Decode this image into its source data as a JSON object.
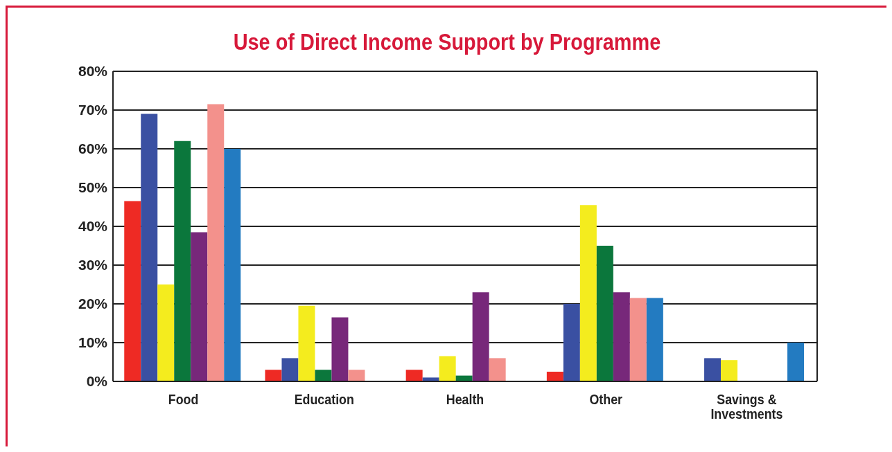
{
  "chart_data": {
    "type": "bar",
    "title": "Use of Direct Income Support by Programme",
    "categories": [
      "Food",
      "Education",
      "Health",
      "Other",
      "Savings & Investments"
    ],
    "series": [
      {
        "color": "#ee2a24",
        "values": [
          46.5,
          3,
          3,
          2.5,
          null
        ]
      },
      {
        "color": "#3a50a2",
        "values": [
          69,
          6,
          1,
          20,
          6
        ]
      },
      {
        "color": "#f4ec1e",
        "values": [
          25,
          19.5,
          6.5,
          45.5,
          5.5
        ]
      },
      {
        "color": "#0b773c",
        "values": [
          62,
          3,
          1.5,
          35,
          null
        ]
      },
      {
        "color": "#77287a",
        "values": [
          38.5,
          16.5,
          23,
          23,
          null
        ]
      },
      {
        "color": "#f3918c",
        "values": [
          71.5,
          3,
          6,
          21.5,
          null
        ]
      },
      {
        "color": "#237bc1",
        "values": [
          60,
          null,
          null,
          21.5,
          10
        ]
      }
    ],
    "ylim": [
      0,
      80
    ],
    "yticks": [
      {
        "value": 0,
        "label": "0%"
      },
      {
        "value": 10,
        "label": "10%"
      },
      {
        "value": 20,
        "label": "20%"
      },
      {
        "value": 30,
        "label": "30%"
      },
      {
        "value": 40,
        "label": "40%"
      },
      {
        "value": 50,
        "label": "50%"
      },
      {
        "value": 60,
        "label": "60%"
      },
      {
        "value": 70,
        "label": "70%"
      },
      {
        "value": 80,
        "label": "80%"
      }
    ],
    "grid": "y"
  }
}
